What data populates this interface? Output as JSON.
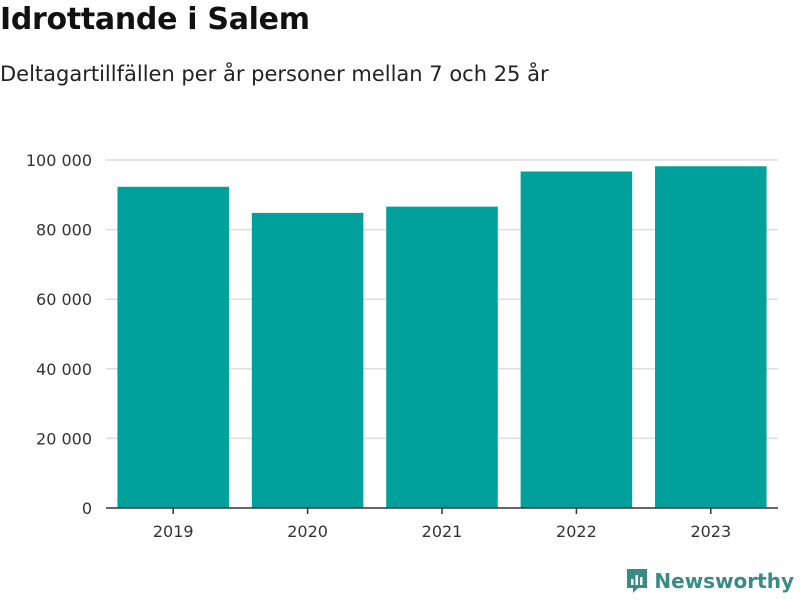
{
  "header": {
    "title": "Idrottande i Salem",
    "subtitle": "Deltagartillfällen per år personer mellan 7 och 25 år"
  },
  "brand": {
    "name": "Newsworthy"
  },
  "colors": {
    "bar": "#00a19a",
    "grid": "#dddddd",
    "axis": "#333333",
    "brand": "#3a8a86"
  },
  "chart_data": {
    "type": "bar",
    "categories": [
      "2019",
      "2020",
      "2021",
      "2022",
      "2023"
    ],
    "values": [
      92300,
      84800,
      86600,
      96700,
      98200
    ],
    "title": "Idrottande i Salem",
    "subtitle": "Deltagartillfällen per år personer mellan 7 och 25 år",
    "xlabel": "",
    "ylabel": "",
    "ylim": [
      0,
      100000
    ],
    "yticks": [
      0,
      20000,
      40000,
      60000,
      80000,
      100000
    ],
    "ytick_labels": [
      "0",
      "20 000",
      "40 000",
      "60 000",
      "80 000",
      "100 000"
    ],
    "grid": true,
    "legend": "none"
  }
}
